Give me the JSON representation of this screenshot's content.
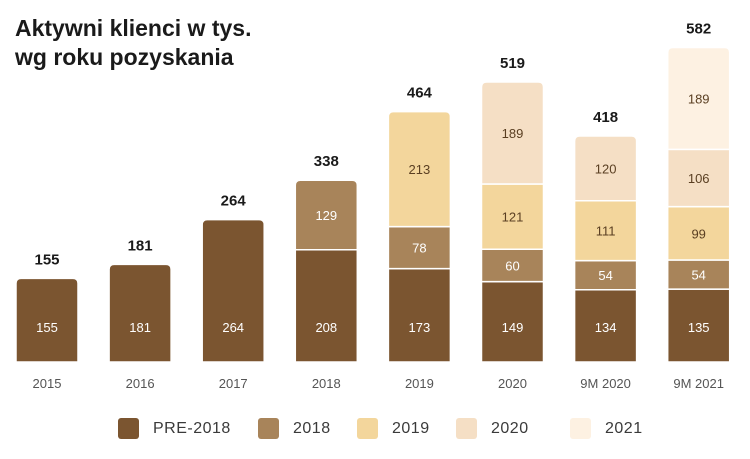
{
  "title_lines": [
    "Aktywni klienci w tys.",
    "wg roku pozyskania"
  ],
  "colors": {
    "PRE-2018": "#7b5530",
    "2018": "#a8845a",
    "2019": "#f3d69c",
    "2020": "#f5dfc5",
    "2021": "#fdf1e2",
    "dark_label": "#ffffff",
    "light_label": "#5a3f22",
    "total_label": "#1a1a1a",
    "axis": "#555555"
  },
  "chart_data": {
    "type": "bar",
    "stacked": true,
    "title": "Aktywni klienci w tys. wg roku pozyskania",
    "categories": [
      "2015",
      "2016",
      "2017",
      "2018",
      "2019",
      "2020",
      "9M 2020",
      "9M 2021"
    ],
    "series": [
      {
        "name": "PRE-2018",
        "values": [
          155,
          181,
          264,
          208,
          173,
          149,
          134,
          135
        ]
      },
      {
        "name": "2018",
        "values": [
          null,
          null,
          null,
          129,
          78,
          60,
          54,
          54
        ]
      },
      {
        "name": "2019",
        "values": [
          null,
          null,
          null,
          null,
          213,
          121,
          111,
          99
        ]
      },
      {
        "name": "2020",
        "values": [
          null,
          null,
          null,
          null,
          null,
          189,
          120,
          106
        ]
      },
      {
        "name": "2021",
        "values": [
          null,
          null,
          null,
          null,
          null,
          null,
          null,
          189
        ]
      }
    ],
    "totals": [
      155,
      181,
      264,
      338,
      464,
      519,
      418,
      582
    ],
    "legend_position": "bottom",
    "grid": false
  }
}
